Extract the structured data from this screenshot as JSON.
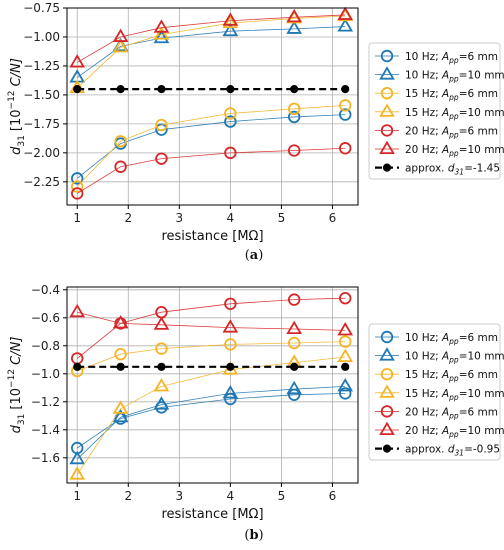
{
  "figure": {
    "colors": {
      "10 Hz": "#1f77b4",
      "15 Hz": "#f5b425",
      "20 Hz": "#d62728",
      "approx": "#000000"
    }
  },
  "chart_data": [
    {
      "panel_label": "(a)",
      "type": "line",
      "title": "",
      "xlabel": "resistance [MΩ]",
      "ylabel_parts": [
        "d",
        "31",
        " [10",
        "−12",
        " C/N]"
      ],
      "xlim": [
        0.8,
        6.5
      ],
      "ylim": [
        -2.45,
        -0.75
      ],
      "xticks": [
        1,
        2,
        3,
        4,
        5,
        6
      ],
      "yticks": [
        -0.75,
        -1.0,
        -1.25,
        -1.5,
        -1.75,
        -2.0,
        -2.25
      ],
      "ytick_labels": [
        "−0.75",
        "−1.00",
        "−1.25",
        "−1.50",
        "−1.75",
        "−2.00",
        "−2.25"
      ],
      "grid": true,
      "legend_placement": "outside-right",
      "x": [
        1,
        1.85,
        2.65,
        4.0,
        5.25,
        6.25
      ],
      "series": [
        {
          "name": "10 Hz; A_pp=6 mm",
          "freq": "10 Hz",
          "marker": "circle",
          "values": [
            -2.22,
            -1.92,
            -1.8,
            -1.73,
            -1.69,
            -1.67
          ]
        },
        {
          "name": "10 Hz; A_pp=10 mm",
          "freq": "10 Hz",
          "marker": "triangle",
          "values": [
            -1.35,
            -1.08,
            -1.01,
            -0.95,
            -0.93,
            -0.91
          ]
        },
        {
          "name": "15 Hz; A_pp=6 mm",
          "freq": "15 Hz",
          "marker": "circle",
          "values": [
            -2.29,
            -1.9,
            -1.76,
            -1.66,
            -1.62,
            -1.59
          ]
        },
        {
          "name": "15 Hz; A_pp=10 mm",
          "freq": "15 Hz",
          "marker": "triangle",
          "values": [
            -1.44,
            -1.09,
            -0.98,
            -0.88,
            -0.84,
            -0.82
          ]
        },
        {
          "name": "20 Hz; A_pp=6 mm",
          "freq": "20 Hz",
          "marker": "circle",
          "values": [
            -2.35,
            -2.12,
            -2.05,
            -2.0,
            -1.98,
            -1.96
          ]
        },
        {
          "name": "20 Hz; A_pp=10 mm",
          "freq": "20 Hz",
          "marker": "triangle",
          "values": [
            -1.22,
            -1.0,
            -0.92,
            -0.86,
            -0.83,
            -0.81
          ]
        },
        {
          "name": "approx. d31=-1.45",
          "freq": "approx",
          "marker": "dot",
          "dashed": true,
          "values": [
            -1.45,
            -1.45,
            -1.45,
            -1.45,
            -1.45,
            -1.45
          ]
        }
      ],
      "legend": [
        {
          "pre": "10 Hz; ",
          "sym": "A",
          "sub": "pp",
          "post": "=6 mm"
        },
        {
          "pre": "10 Hz; ",
          "sym": "A",
          "sub": "pp",
          "post": "=10 mm"
        },
        {
          "pre": "15 Hz; ",
          "sym": "A",
          "sub": "pp",
          "post": "=6 mm"
        },
        {
          "pre": "15 Hz; ",
          "sym": "A",
          "sub": "pp",
          "post": "=10 mm"
        },
        {
          "pre": "20 Hz; ",
          "sym": "A",
          "sub": "pp",
          "post": "=6 mm"
        },
        {
          "pre": "20 Hz; ",
          "sym": "A",
          "sub": "pp",
          "post": "=10 mm"
        },
        {
          "pre": "approx. ",
          "sym": "d",
          "sub": "31",
          "post": "=-1.45"
        }
      ]
    },
    {
      "panel_label": "(b)",
      "type": "line",
      "title": "",
      "xlabel": "resistance [MΩ]",
      "ylabel_parts": [
        "d",
        "31",
        " [10",
        "−12",
        " C/N]"
      ],
      "xlim": [
        0.8,
        6.5
      ],
      "ylim": [
        -1.78,
        -0.38
      ],
      "xticks": [
        1,
        2,
        3,
        4,
        5,
        6
      ],
      "yticks": [
        -0.4,
        -0.6,
        -0.8,
        -1.0,
        -1.2,
        -1.4,
        -1.6
      ],
      "ytick_labels": [
        "−0.4",
        "−0.6",
        "−0.8",
        "−1.0",
        "−1.2",
        "−1.4",
        "−1.6"
      ],
      "grid": true,
      "legend_placement": "outside-right",
      "x": [
        1,
        1.85,
        2.65,
        4.0,
        5.25,
        6.25
      ],
      "series": [
        {
          "name": "10 Hz; A_pp=6 mm",
          "freq": "10 Hz",
          "marker": "circle",
          "values": [
            -1.53,
            -1.32,
            -1.24,
            -1.18,
            -1.15,
            -1.14
          ]
        },
        {
          "name": "10 Hz; A_pp=10 mm",
          "freq": "10 Hz",
          "marker": "triangle",
          "values": [
            -1.61,
            -1.31,
            -1.22,
            -1.14,
            -1.11,
            -1.09
          ]
        },
        {
          "name": "15 Hz; A_pp=6 mm",
          "freq": "15 Hz",
          "marker": "circle",
          "values": [
            -0.98,
            -0.86,
            -0.82,
            -0.79,
            -0.78,
            -0.77
          ]
        },
        {
          "name": "15 Hz; A_pp=10 mm",
          "freq": "15 Hz",
          "marker": "triangle",
          "values": [
            -1.72,
            -1.25,
            -1.09,
            -0.97,
            -0.92,
            -0.88
          ]
        },
        {
          "name": "20 Hz; A_pp=6 mm",
          "freq": "20 Hz",
          "marker": "circle",
          "values": [
            -0.89,
            -0.64,
            -0.56,
            -0.5,
            -0.47,
            -0.46
          ]
        },
        {
          "name": "20 Hz; A_pp=10 mm",
          "freq": "20 Hz",
          "marker": "triangle",
          "values": [
            -0.56,
            -0.64,
            -0.65,
            -0.67,
            -0.68,
            -0.69
          ]
        },
        {
          "name": "approx. d31=-0.95",
          "freq": "approx",
          "marker": "dot",
          "dashed": true,
          "values": [
            -0.95,
            -0.95,
            -0.95,
            -0.95,
            -0.95,
            -0.95
          ]
        }
      ],
      "legend": [
        {
          "pre": "10 Hz; ",
          "sym": "A",
          "sub": "pp",
          "post": "=6 mm"
        },
        {
          "pre": "10 Hz; ",
          "sym": "A",
          "sub": "pp",
          "post": "=10 mm"
        },
        {
          "pre": "15 Hz; ",
          "sym": "A",
          "sub": "pp",
          "post": "=6 mm"
        },
        {
          "pre": "15 Hz; ",
          "sym": "A",
          "sub": "pp",
          "post": "=10 mm"
        },
        {
          "pre": "20 Hz; ",
          "sym": "A",
          "sub": "pp",
          "post": "=6 mm"
        },
        {
          "pre": "20 Hz; ",
          "sym": "A",
          "sub": "pp",
          "post": "=10 mm"
        },
        {
          "pre": "approx. ",
          "sym": "d",
          "sub": "31",
          "post": "=-0.95"
        }
      ]
    }
  ]
}
